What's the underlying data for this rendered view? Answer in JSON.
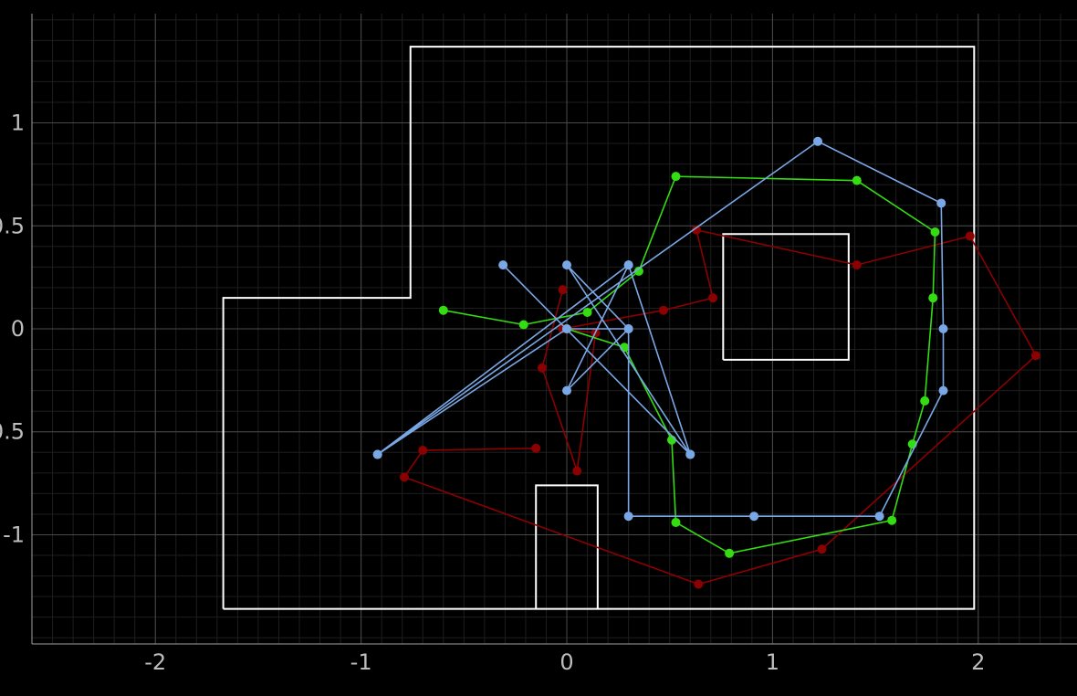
{
  "chart_data": {
    "type": "line",
    "title": "",
    "xlabel": "",
    "ylabel": "",
    "xlim": [
      -2.6,
      2.48
    ],
    "ylim": [
      -1.53,
      1.53
    ],
    "x_ticks": [
      -2,
      -1,
      0,
      1,
      2
    ],
    "y_ticks": [
      -1,
      -0.5,
      0,
      0.5,
      1
    ],
    "x_tick_labels": [
      "-2",
      "-1",
      "0",
      "1",
      "2"
    ],
    "y_tick_labels": [
      "-1",
      "-0.5",
      "0",
      "0.5",
      "1"
    ],
    "grid": true,
    "minor_grid_step": 0.1,
    "background": "#000000",
    "grid_major_color": "#4a4a4a",
    "grid_minor_color": "#1e1e1e",
    "axis_color": "#a0a0a0",
    "wall_color": "#ffffff",
    "walls": [
      {
        "points": [
          [
            -1.67,
            -1.36
          ],
          [
            1.98,
            -1.36
          ],
          [
            1.98,
            1.37
          ],
          [
            -0.76,
            1.37
          ],
          [
            -0.76,
            0.15
          ],
          [
            -1.67,
            0.15
          ],
          [
            -1.67,
            -1.36
          ]
        ]
      },
      {
        "points": [
          [
            0.76,
            -0.15
          ],
          [
            1.37,
            -0.15
          ],
          [
            1.37,
            0.46
          ],
          [
            0.76,
            0.46
          ],
          [
            0.76,
            -0.15
          ]
        ]
      },
      {
        "points": [
          [
            -0.15,
            -1.36
          ],
          [
            -0.15,
            -0.76
          ],
          [
            0.15,
            -0.76
          ],
          [
            0.15,
            -1.36
          ]
        ]
      }
    ],
    "series": [
      {
        "color": "#8b0000",
        "points": [
          [
            -0.02,
            0.19
          ],
          [
            -0.12,
            -0.19
          ],
          [
            0.05,
            -0.69
          ],
          [
            0.14,
            -0.02
          ],
          [
            -0.02,
            0.0
          ],
          [
            0.47,
            0.09
          ],
          [
            0.71,
            0.15
          ],
          [
            0.63,
            0.48
          ],
          [
            1.41,
            0.31
          ],
          [
            1.96,
            0.45
          ],
          [
            2.28,
            -0.13
          ],
          [
            1.24,
            -1.07
          ],
          [
            0.64,
            -1.24
          ],
          [
            -0.79,
            -0.72
          ],
          [
            -0.7,
            -0.59
          ],
          [
            -0.15,
            -0.58
          ]
        ]
      },
      {
        "color": "#33dd11",
        "points": [
          [
            -0.6,
            0.09
          ],
          [
            -0.21,
            0.02
          ],
          [
            0.1,
            0.08
          ],
          [
            0.35,
            0.28
          ],
          [
            0.53,
            0.74
          ],
          [
            1.41,
            0.72
          ],
          [
            1.79,
            0.47
          ],
          [
            1.78,
            0.15
          ],
          [
            1.74,
            -0.35
          ],
          [
            1.68,
            -0.56
          ],
          [
            1.58,
            -0.93
          ],
          [
            0.79,
            -1.09
          ],
          [
            0.53,
            -0.94
          ],
          [
            0.51,
            -0.54
          ],
          [
            0.28,
            -0.09
          ],
          [
            0.0,
            0.0
          ]
        ]
      },
      {
        "color": "#7aa8e6",
        "points": [
          [
            -0.31,
            0.31
          ],
          [
            0.6,
            -0.61
          ],
          [
            0.0,
            0.31
          ],
          [
            0.3,
            0.0
          ],
          [
            0.0,
            -0.3
          ],
          [
            0.3,
            0.31
          ],
          [
            -0.92,
            -0.61
          ],
          [
            1.22,
            0.91
          ],
          [
            1.82,
            0.61
          ],
          [
            1.83,
            0.0
          ],
          [
            1.83,
            -0.3
          ],
          [
            1.52,
            -0.91
          ],
          [
            0.91,
            -0.91
          ],
          [
            0.3,
            -0.91
          ],
          [
            0.3,
            0.0
          ],
          [
            0.0,
            0.0
          ],
          [
            -0.92,
            -0.61
          ],
          [
            0.3,
            0.31
          ],
          [
            0.6,
            -0.61
          ]
        ]
      }
    ]
  }
}
